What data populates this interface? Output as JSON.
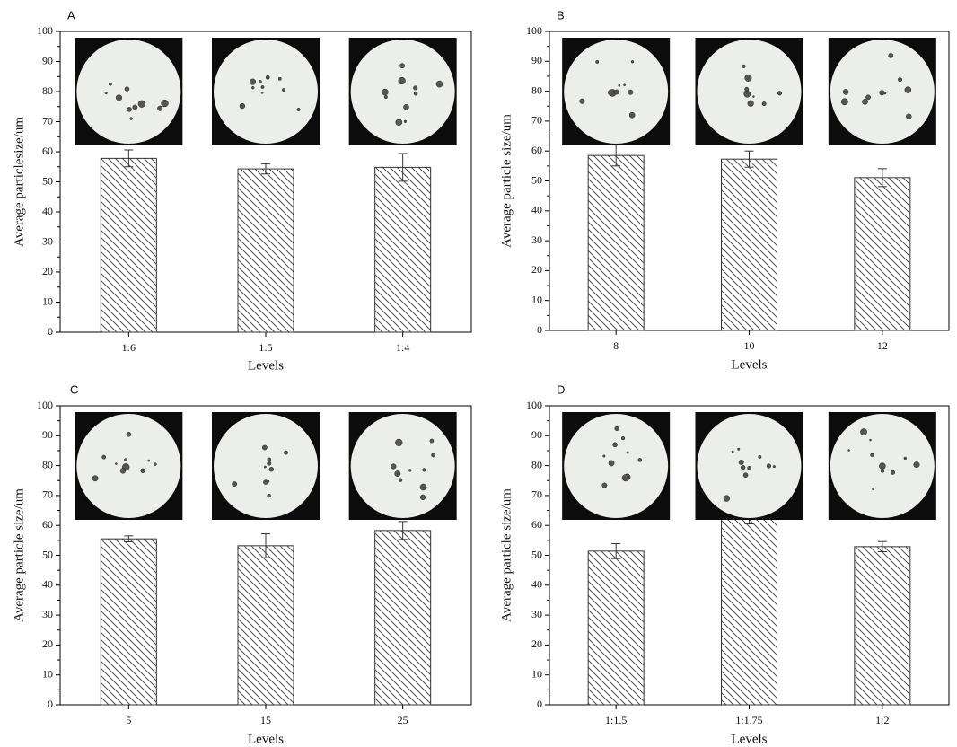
{
  "chart_data": [
    {
      "type": "bar",
      "title": "A",
      "xlabel": "Levels",
      "ylabel": "Average particlesize/um",
      "color": "#333333",
      "categories": [
        "1:6",
        "1:5",
        "1:4"
      ],
      "values": [
        57.8,
        54.3,
        54.8
      ],
      "errors": [
        2.8,
        1.7,
        4.6
      ],
      "ylim": [
        0,
        100
      ],
      "yticks": [
        0,
        10,
        20,
        30,
        40,
        50,
        60,
        70,
        80,
        90,
        100
      ]
    },
    {
      "type": "bar",
      "title": "B",
      "xlabel": "Levels",
      "ylabel": "Average particle size/um",
      "color": "#333333",
      "categories": [
        "8",
        "10",
        "12"
      ],
      "values": [
        58.5,
        57.3,
        51.1
      ],
      "errors": [
        3.5,
        2.7,
        3.0
      ],
      "ylim": [
        0,
        100
      ],
      "yticks": [
        0,
        10,
        20,
        30,
        40,
        50,
        60,
        70,
        80,
        90,
        100
      ]
    },
    {
      "type": "bar",
      "title": "C",
      "xlabel": "Levels",
      "ylabel": "Average particle size/um",
      "color": "#333333",
      "categories": [
        "5",
        "15",
        "25"
      ],
      "values": [
        55.5,
        53.2,
        58.3
      ],
      "errors": [
        1.0,
        4.0,
        3.0
      ],
      "ylim": [
        0,
        100
      ],
      "yticks": [
        0,
        10,
        20,
        30,
        40,
        50,
        60,
        70,
        80,
        90,
        100
      ]
    },
    {
      "type": "bar",
      "title": "D",
      "xlabel": "Levels",
      "ylabel": "Average particle size/um",
      "color": "#333333",
      "categories": [
        "1:1.5",
        "1:1.75",
        "1:2"
      ],
      "values": [
        51.4,
        63.0,
        52.9
      ],
      "errors": [
        2.5,
        2.5,
        1.7
      ],
      "ylim": [
        0,
        100
      ],
      "yticks": [
        0,
        10,
        20,
        30,
        40,
        50,
        60,
        70,
        80,
        90,
        100
      ]
    }
  ]
}
